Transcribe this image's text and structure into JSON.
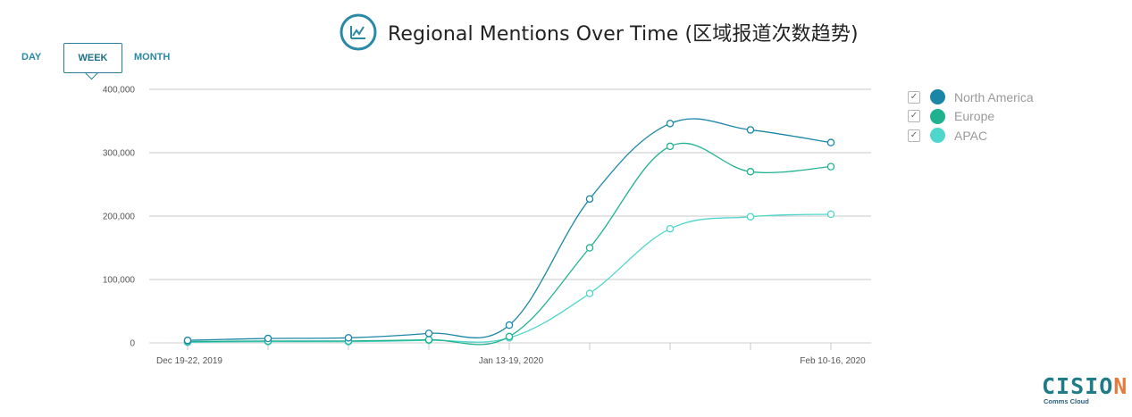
{
  "title": "Regional Mentions Over Time (区域报道次数趋势)",
  "title_icon": "line-chart-icon",
  "range_tabs": {
    "day": "DAY",
    "week": "WEEK",
    "month": "MONTH",
    "selected": "week"
  },
  "brand": {
    "name": "CISION",
    "subtitle": "Comms Cloud"
  },
  "colors": {
    "accent": "#2a8aa6",
    "north_america": "#1a86a6",
    "europe": "#20b290",
    "apac": "#4fd6cc",
    "gridline": "#c8c8c8"
  },
  "chart_data": {
    "type": "line",
    "title": "Regional Mentions Over Time (区域报道次数趋势)",
    "x": [
      "Dec 19-22, 2019",
      "",
      "",
      "",
      "Jan 13-19, 2020",
      "",
      "",
      "",
      "Feb 10-16, 2020"
    ],
    "x_tick_labels": [
      "Dec 19-22, 2019",
      "Jan 13-19, 2020",
      "Feb 10-16, 2020"
    ],
    "y_ticks": [
      "0",
      "100,000",
      "200,000",
      "300,000",
      "400,000"
    ],
    "ylim": [
      0,
      400000
    ],
    "grid": true,
    "legend_position": "right",
    "series": [
      {
        "name": "North America",
        "color": "#1a86a6",
        "values": [
          4000,
          7000,
          8000,
          15000,
          28000,
          227000,
          346000,
          336000,
          316000
        ]
      },
      {
        "name": "Europe",
        "color": "#20b290",
        "values": [
          2000,
          3000,
          3000,
          5000,
          10000,
          150000,
          310000,
          270000,
          278000
        ]
      },
      {
        "name": "APAC",
        "color": "#4fd6cc",
        "values": [
          1000,
          2000,
          2000,
          4000,
          8000,
          78000,
          180000,
          199000,
          203000
        ]
      }
    ]
  }
}
